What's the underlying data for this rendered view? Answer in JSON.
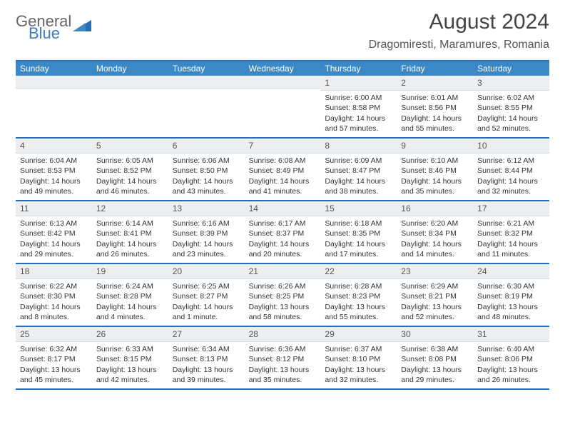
{
  "logo": {
    "line1": "General",
    "line2": "Blue"
  },
  "title": "August 2024",
  "location": "Dragomiresti, Maramures, Romania",
  "day_names": [
    "Sunday",
    "Monday",
    "Tuesday",
    "Wednesday",
    "Thursday",
    "Friday",
    "Saturday"
  ],
  "colors": {
    "header_bar": "#3b88c4",
    "header_border": "#2a6cb0",
    "num_bg": "#eceef0",
    "num_border": "#d6d9dc",
    "text": "#333333",
    "logo_gray": "#666666",
    "logo_blue": "#3b7bbf"
  },
  "weeks": [
    [
      {
        "n": "",
        "lines": []
      },
      {
        "n": "",
        "lines": []
      },
      {
        "n": "",
        "lines": []
      },
      {
        "n": "",
        "lines": []
      },
      {
        "n": "1",
        "lines": [
          "Sunrise: 6:00 AM",
          "Sunset: 8:58 PM",
          "Daylight: 14 hours and 57 minutes."
        ]
      },
      {
        "n": "2",
        "lines": [
          "Sunrise: 6:01 AM",
          "Sunset: 8:56 PM",
          "Daylight: 14 hours and 55 minutes."
        ]
      },
      {
        "n": "3",
        "lines": [
          "Sunrise: 6:02 AM",
          "Sunset: 8:55 PM",
          "Daylight: 14 hours and 52 minutes."
        ]
      }
    ],
    [
      {
        "n": "4",
        "lines": [
          "Sunrise: 6:04 AM",
          "Sunset: 8:53 PM",
          "Daylight: 14 hours and 49 minutes."
        ]
      },
      {
        "n": "5",
        "lines": [
          "Sunrise: 6:05 AM",
          "Sunset: 8:52 PM",
          "Daylight: 14 hours and 46 minutes."
        ]
      },
      {
        "n": "6",
        "lines": [
          "Sunrise: 6:06 AM",
          "Sunset: 8:50 PM",
          "Daylight: 14 hours and 43 minutes."
        ]
      },
      {
        "n": "7",
        "lines": [
          "Sunrise: 6:08 AM",
          "Sunset: 8:49 PM",
          "Daylight: 14 hours and 41 minutes."
        ]
      },
      {
        "n": "8",
        "lines": [
          "Sunrise: 6:09 AM",
          "Sunset: 8:47 PM",
          "Daylight: 14 hours and 38 minutes."
        ]
      },
      {
        "n": "9",
        "lines": [
          "Sunrise: 6:10 AM",
          "Sunset: 8:46 PM",
          "Daylight: 14 hours and 35 minutes."
        ]
      },
      {
        "n": "10",
        "lines": [
          "Sunrise: 6:12 AM",
          "Sunset: 8:44 PM",
          "Daylight: 14 hours and 32 minutes."
        ]
      }
    ],
    [
      {
        "n": "11",
        "lines": [
          "Sunrise: 6:13 AM",
          "Sunset: 8:42 PM",
          "Daylight: 14 hours and 29 minutes."
        ]
      },
      {
        "n": "12",
        "lines": [
          "Sunrise: 6:14 AM",
          "Sunset: 8:41 PM",
          "Daylight: 14 hours and 26 minutes."
        ]
      },
      {
        "n": "13",
        "lines": [
          "Sunrise: 6:16 AM",
          "Sunset: 8:39 PM",
          "Daylight: 14 hours and 23 minutes."
        ]
      },
      {
        "n": "14",
        "lines": [
          "Sunrise: 6:17 AM",
          "Sunset: 8:37 PM",
          "Daylight: 14 hours and 20 minutes."
        ]
      },
      {
        "n": "15",
        "lines": [
          "Sunrise: 6:18 AM",
          "Sunset: 8:35 PM",
          "Daylight: 14 hours and 17 minutes."
        ]
      },
      {
        "n": "16",
        "lines": [
          "Sunrise: 6:20 AM",
          "Sunset: 8:34 PM",
          "Daylight: 14 hours and 14 minutes."
        ]
      },
      {
        "n": "17",
        "lines": [
          "Sunrise: 6:21 AM",
          "Sunset: 8:32 PM",
          "Daylight: 14 hours and 11 minutes."
        ]
      }
    ],
    [
      {
        "n": "18",
        "lines": [
          "Sunrise: 6:22 AM",
          "Sunset: 8:30 PM",
          "Daylight: 14 hours and 8 minutes."
        ]
      },
      {
        "n": "19",
        "lines": [
          "Sunrise: 6:24 AM",
          "Sunset: 8:28 PM",
          "Daylight: 14 hours and 4 minutes."
        ]
      },
      {
        "n": "20",
        "lines": [
          "Sunrise: 6:25 AM",
          "Sunset: 8:27 PM",
          "Daylight: 14 hours and 1 minute."
        ]
      },
      {
        "n": "21",
        "lines": [
          "Sunrise: 6:26 AM",
          "Sunset: 8:25 PM",
          "Daylight: 13 hours and 58 minutes."
        ]
      },
      {
        "n": "22",
        "lines": [
          "Sunrise: 6:28 AM",
          "Sunset: 8:23 PM",
          "Daylight: 13 hours and 55 minutes."
        ]
      },
      {
        "n": "23",
        "lines": [
          "Sunrise: 6:29 AM",
          "Sunset: 8:21 PM",
          "Daylight: 13 hours and 52 minutes."
        ]
      },
      {
        "n": "24",
        "lines": [
          "Sunrise: 6:30 AM",
          "Sunset: 8:19 PM",
          "Daylight: 13 hours and 48 minutes."
        ]
      }
    ],
    [
      {
        "n": "25",
        "lines": [
          "Sunrise: 6:32 AM",
          "Sunset: 8:17 PM",
          "Daylight: 13 hours and 45 minutes."
        ]
      },
      {
        "n": "26",
        "lines": [
          "Sunrise: 6:33 AM",
          "Sunset: 8:15 PM",
          "Daylight: 13 hours and 42 minutes."
        ]
      },
      {
        "n": "27",
        "lines": [
          "Sunrise: 6:34 AM",
          "Sunset: 8:13 PM",
          "Daylight: 13 hours and 39 minutes."
        ]
      },
      {
        "n": "28",
        "lines": [
          "Sunrise: 6:36 AM",
          "Sunset: 8:12 PM",
          "Daylight: 13 hours and 35 minutes."
        ]
      },
      {
        "n": "29",
        "lines": [
          "Sunrise: 6:37 AM",
          "Sunset: 8:10 PM",
          "Daylight: 13 hours and 32 minutes."
        ]
      },
      {
        "n": "30",
        "lines": [
          "Sunrise: 6:38 AM",
          "Sunset: 8:08 PM",
          "Daylight: 13 hours and 29 minutes."
        ]
      },
      {
        "n": "31",
        "lines": [
          "Sunrise: 6:40 AM",
          "Sunset: 8:06 PM",
          "Daylight: 13 hours and 26 minutes."
        ]
      }
    ]
  ]
}
